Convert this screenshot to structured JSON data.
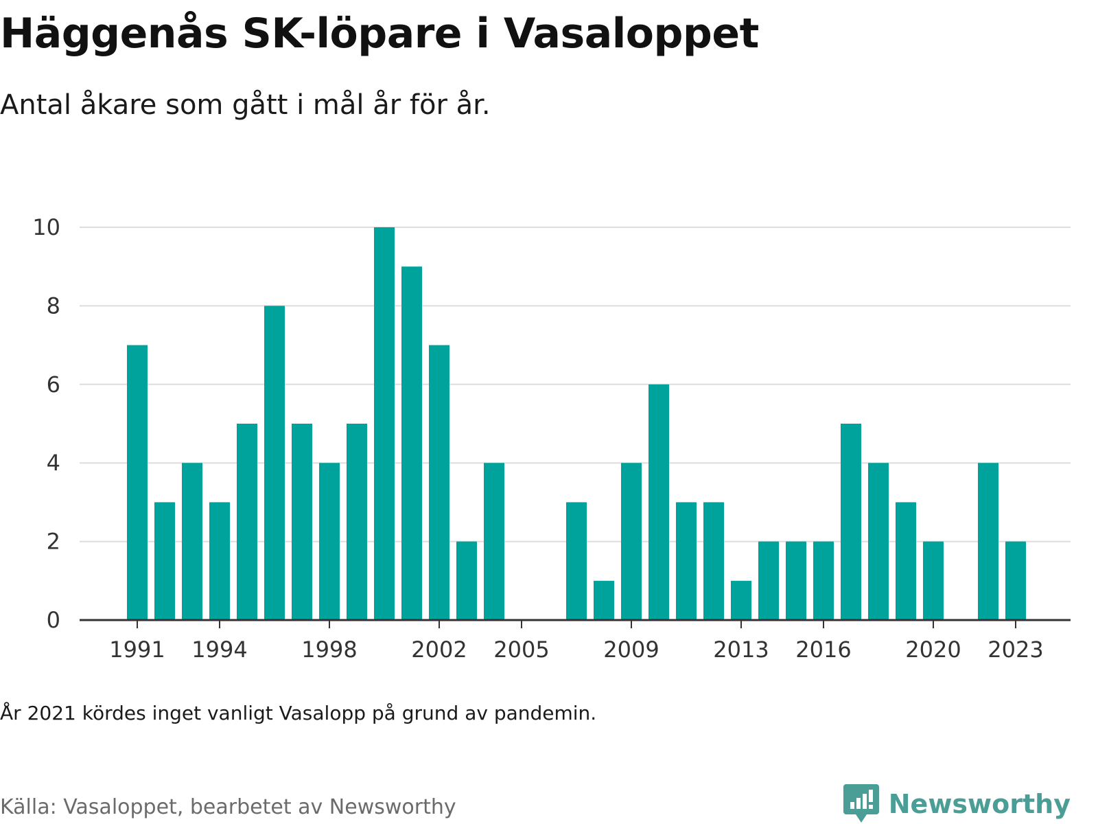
{
  "title": "Häggenås SK-löpare i Vasaloppet",
  "subtitle": "Antal åkare som gått i mål år för år.",
  "note": "År 2021 kördes inget vanligt Vasalopp på grund av pandemin.",
  "source": "Källa: Vasaloppet, bearbetet av Newsworthy",
  "brand": {
    "name": "Newsworthy",
    "icon": "newsworthy-logo-icon"
  },
  "colors": {
    "bar": "#00A39B",
    "grid": "#dddddd",
    "axis": "#333333",
    "brand": "#4a9e96"
  },
  "chart_data": {
    "type": "bar",
    "title": "",
    "xlabel": "",
    "ylabel": "",
    "ylim": [
      0,
      10
    ],
    "y_ticks": [
      0,
      2,
      4,
      6,
      8,
      10
    ],
    "x_tick_labels": [
      1991,
      1994,
      1998,
      2002,
      2005,
      2009,
      2013,
      2016,
      2020,
      2023
    ],
    "grid": true,
    "categories": [
      1991,
      1992,
      1993,
      1994,
      1995,
      1996,
      1997,
      1998,
      1999,
      2000,
      2001,
      2002,
      2003,
      2004,
      2005,
      2006,
      2007,
      2008,
      2009,
      2010,
      2011,
      2012,
      2013,
      2014,
      2015,
      2016,
      2017,
      2018,
      2019,
      2020,
      2021,
      2022,
      2023
    ],
    "values": [
      7,
      3,
      4,
      3,
      5,
      8,
      5,
      4,
      5,
      10,
      9,
      7,
      2,
      4,
      0,
      0,
      3,
      1,
      4,
      6,
      3,
      3,
      1,
      2,
      2,
      2,
      5,
      4,
      3,
      2,
      0,
      4,
      2
    ]
  }
}
